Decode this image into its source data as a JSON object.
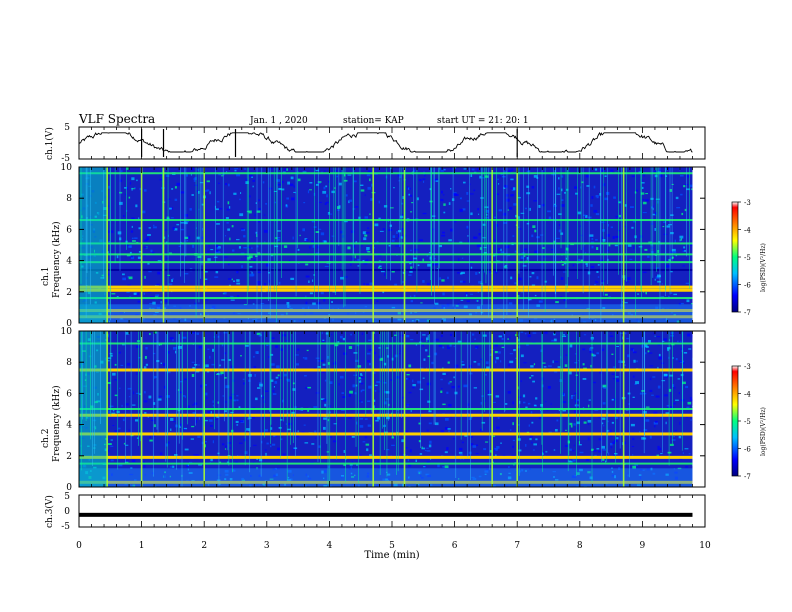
{
  "header": {
    "title": "VLF Spectra",
    "date": "Jan. 1 , 2020",
    "station": "station= KAP",
    "start": "start UT = 21: 20: 1"
  },
  "chart_data": [
    {
      "type": "line",
      "name": "ch1-waveform",
      "ylabel": "ch.1(V)",
      "ylim": [
        -5,
        5
      ],
      "yticks": [
        "5",
        "-5"
      ],
      "xlim": [
        0,
        10
      ],
      "x_extent_min": [
        0,
        9.8
      ],
      "y_range_approx": [
        -2,
        2
      ]
    },
    {
      "type": "heatmap",
      "name": "ch1-spectrogram",
      "ylabel": "ch.1 Frequency (kHz)",
      "ylim": [
        0,
        10
      ],
      "yticks": [
        "0",
        "2",
        "4",
        "6",
        "8",
        "10"
      ],
      "xlim": [
        0,
        10
      ],
      "x_extent_min": [
        0,
        9.8
      ],
      "colorbar": {
        "label": "log(PSD)(V²/Hz)",
        "range": [
          -7,
          -3
        ],
        "ticks": [
          "-3",
          "-4",
          "-5",
          "-6",
          "-7"
        ]
      },
      "bands_khz": [
        {
          "f": 0.4,
          "level": "high"
        },
        {
          "f": 0.8,
          "level": "high"
        },
        {
          "f": 1.6,
          "level": "mid"
        },
        {
          "f": 2.1,
          "level": "high"
        },
        {
          "f": 2.3,
          "level": "high"
        },
        {
          "f": 3.4,
          "level": "low"
        },
        {
          "f": 3.9,
          "level": "mid"
        },
        {
          "f": 4.4,
          "level": "mid"
        },
        {
          "f": 5.1,
          "level": "mid"
        },
        {
          "f": 6.6,
          "level": "mid"
        },
        {
          "f": 9.6,
          "level": "mid"
        }
      ],
      "vertical_events_min": [
        0.45,
        1.0,
        1.35,
        2.0,
        4.7,
        5.2,
        6.6,
        7.0,
        8.7
      ]
    },
    {
      "type": "heatmap",
      "name": "ch2-spectrogram",
      "ylabel": "ch.2 Frequency (kHz)",
      "ylim": [
        0,
        10
      ],
      "yticks": [
        "0",
        "2",
        "4",
        "6",
        "8",
        "10"
      ],
      "xlim": [
        0,
        10
      ],
      "x_extent_min": [
        0,
        9.8
      ],
      "colorbar": {
        "label": "log(PSD)(V²/Hz)",
        "range": [
          -7,
          -3
        ],
        "ticks": [
          "-3",
          "-4",
          "-5",
          "-6",
          "-7"
        ]
      },
      "bands_khz": [
        {
          "f": 0.3,
          "level": "high"
        },
        {
          "f": 1.5,
          "level": "mid"
        },
        {
          "f": 1.9,
          "level": "high"
        },
        {
          "f": 3.4,
          "level": "high"
        },
        {
          "f": 4.6,
          "level": "high"
        },
        {
          "f": 5.0,
          "level": "mid"
        },
        {
          "f": 7.5,
          "level": "high"
        },
        {
          "f": 9.2,
          "level": "mid"
        }
      ],
      "vertical_events_min": [
        0.45,
        1.0,
        2.0,
        4.7,
        5.2,
        6.6,
        7.0,
        8.7
      ]
    },
    {
      "type": "line",
      "name": "ch3-waveform",
      "ylabel": "ch.3(V)",
      "ylim": [
        -5,
        5
      ],
      "yticks": [
        "5",
        "0",
        "-5"
      ],
      "xlim": [
        0,
        10
      ],
      "x_extent_min": [
        0,
        9.8
      ],
      "constant_value": -1.2,
      "xlabel": "Time (min)",
      "xticks": [
        "0",
        "1",
        "2",
        "3",
        "4",
        "5",
        "6",
        "7",
        "8",
        "9",
        "10"
      ]
    }
  ],
  "colors": {
    "background_spec": "#1414b8",
    "colormap": [
      "#000080",
      "#0000ff",
      "#00bfff",
      "#00ff80",
      "#ffff00",
      "#ff8000",
      "#ff0000",
      "#ffffff"
    ]
  }
}
